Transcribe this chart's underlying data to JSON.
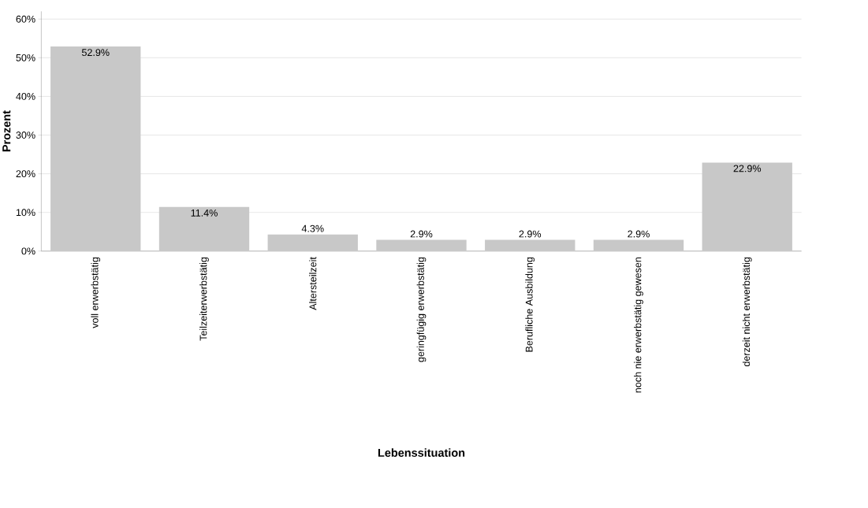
{
  "chart_data": {
    "type": "bar",
    "xlabel": "Lebenssituation",
    "ylabel": "Prozent",
    "categories": [
      "voll erwerbstätig",
      "Teilzeiterwerbstätig",
      "Altersteilzeit",
      "geringfügig erwerbstätig",
      "Berufliche Ausbildung",
      "noch nie erwerbstätig gewesen",
      "derzeit nicht erwerbstätig"
    ],
    "values": [
      52.9,
      11.4,
      4.3,
      2.9,
      2.9,
      2.9,
      22.9
    ],
    "value_labels": [
      "52.9%",
      "11.4%",
      "4.3%",
      "2.9%",
      "2.9%",
      "2.9%",
      "22.9%"
    ],
    "color": "#c8c8c8",
    "ylim": [
      0,
      62
    ],
    "yticks": [
      {
        "value": 0,
        "label": "0%"
      },
      {
        "value": 10,
        "label": "10%"
      },
      {
        "value": 20,
        "label": "20%"
      },
      {
        "value": 30,
        "label": "30%"
      },
      {
        "value": 40,
        "label": "40%"
      },
      {
        "value": 50,
        "label": "50%"
      },
      {
        "value": 60,
        "label": "60%"
      }
    ],
    "grid": "y"
  }
}
